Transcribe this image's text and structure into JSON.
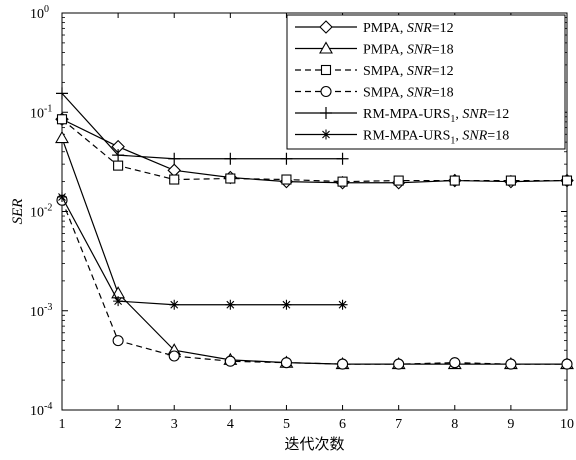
{
  "chart_data": {
    "type": "line",
    "xlabel": "迭代次数",
    "ylabel": "SER",
    "x_ticks": [
      "1",
      "2",
      "3",
      "4",
      "5",
      "6",
      "7",
      "8",
      "9",
      "10"
    ],
    "y_ticks": [
      {
        "base": "10",
        "exp": "0"
      },
      {
        "base": "10",
        "exp": "-1"
      },
      {
        "base": "10",
        "exp": "-2"
      },
      {
        "base": "10",
        "exp": "-3"
      },
      {
        "base": "10",
        "exp": "-4"
      }
    ],
    "xlim": [
      1,
      10
    ],
    "ylim": [
      0.0001,
      1
    ],
    "yscale": "log",
    "grid": false,
    "legend_position": "top-right",
    "series": [
      {
        "label_main": "PMPA, ",
        "label_italic": "SNR",
        "label_tail": "=12",
        "marker": "diamond",
        "dash": "solid",
        "x": [
          1,
          2,
          3,
          4,
          5,
          6,
          7,
          8,
          9,
          10
        ],
        "y": [
          0.085,
          0.045,
          0.026,
          0.022,
          0.02,
          0.0195,
          0.0195,
          0.0205,
          0.02,
          0.0205
        ]
      },
      {
        "label_main": "PMPA, ",
        "label_italic": "SNR",
        "label_tail": "=18",
        "marker": "triangle",
        "dash": "solid",
        "x": [
          1,
          2,
          3,
          4,
          5,
          6,
          7,
          8,
          9,
          10
        ],
        "y": [
          0.055,
          0.0015,
          0.0004,
          0.00032,
          0.0003,
          0.00029,
          0.00029,
          0.00029,
          0.00029,
          0.00029
        ]
      },
      {
        "label_main": "SMPA, ",
        "label_italic": "SNR",
        "label_tail": "=12",
        "marker": "square",
        "dash": "dashed",
        "x": [
          1,
          2,
          3,
          4,
          5,
          6,
          7,
          8,
          9,
          10
        ],
        "y": [
          0.085,
          0.029,
          0.021,
          0.0215,
          0.021,
          0.02,
          0.0205,
          0.0205,
          0.0205,
          0.0205
        ]
      },
      {
        "label_main": "SMPA, ",
        "label_italic": "SNR",
        "label_tail": "=18",
        "marker": "circle",
        "dash": "dashed",
        "x": [
          1,
          2,
          3,
          4,
          5,
          6,
          7,
          8,
          9,
          10
        ],
        "y": [
          0.013,
          0.0005,
          0.00035,
          0.00031,
          0.0003,
          0.00029,
          0.00029,
          0.0003,
          0.00029,
          0.00029
        ]
      },
      {
        "label_main": "RM-MPA-URS",
        "label_sub": "1",
        "label_mid": ", ",
        "label_italic": "SNR",
        "label_tail": "=12",
        "marker": "plus",
        "dash": "solid",
        "x": [
          1,
          2,
          3,
          4,
          5,
          6
        ],
        "y": [
          0.155,
          0.037,
          0.034,
          0.034,
          0.034,
          0.034
        ]
      },
      {
        "label_main": "RM-MPA-URS",
        "label_sub": "1",
        "label_mid": ", ",
        "label_italic": "SNR",
        "label_tail": "=18",
        "marker": "star",
        "dash": "solid",
        "x": [
          1,
          2,
          3,
          4,
          5,
          6
        ],
        "y": [
          0.014,
          0.00125,
          0.00115,
          0.00115,
          0.00115,
          0.00115
        ]
      }
    ]
  }
}
